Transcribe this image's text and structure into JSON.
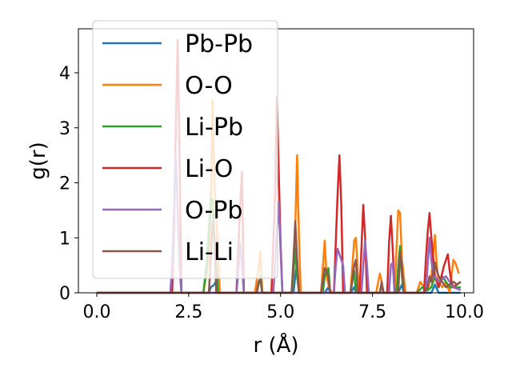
{
  "chart_data": {
    "type": "line",
    "title": "",
    "xlabel": "r (Å)",
    "ylabel": "g(r)",
    "xlim": [
      -0.5,
      10.25
    ],
    "ylim": [
      0,
      4.8
    ],
    "xticks": [
      0.0,
      2.5,
      5.0,
      7.5,
      10.0
    ],
    "xtick_labels": [
      "0.0",
      "2.5",
      "5.0",
      "7.5",
      "10.0"
    ],
    "yticks": [
      0,
      1,
      2,
      3,
      4
    ],
    "ytick_labels": [
      "0",
      "1",
      "2",
      "3",
      "4"
    ],
    "grid": false,
    "legend_position": "upper-left",
    "series": [
      {
        "name": "Pb-Pb",
        "color": "#1f77b4",
        "x": [
          0,
          3.05,
          3.1,
          3.2,
          3.3,
          3.35,
          5.35,
          5.4,
          5.45,
          5.5,
          6.2,
          6.3,
          6.35,
          6.9,
          7.0,
          7.05,
          8.2,
          8.3,
          8.35,
          9.1,
          9.2,
          9.3,
          9.9
        ],
        "values": [
          0,
          0,
          0.1,
          0.15,
          0.3,
          0,
          0,
          0.3,
          0.55,
          0,
          0,
          0.1,
          0,
          0,
          0.1,
          0,
          0,
          0.15,
          0,
          0,
          0.15,
          0,
          0
        ]
      },
      {
        "name": "O-O",
        "color": "#ff7f0e",
        "x": [
          0,
          2.9,
          3.05,
          3.1,
          3.15,
          3.2,
          3.25,
          3.35,
          4.3,
          4.4,
          4.45,
          4.5,
          5.3,
          5.35,
          5.4,
          5.45,
          5.5,
          5.55,
          6.1,
          6.2,
          6.25,
          6.3,
          6.35,
          6.4,
          6.9,
          7.0,
          7.05,
          7.1,
          7.15,
          7.6,
          7.7,
          7.75,
          7.8,
          8.1,
          8.2,
          8.25,
          8.3,
          8.4,
          8.7,
          8.8,
          8.9,
          9.0,
          9.1,
          9.2,
          9.25,
          9.3,
          9.4,
          9.5,
          9.6,
          9.7,
          9.75,
          9.85
        ],
        "values": [
          0,
          0,
          0.6,
          1.5,
          3.5,
          2.0,
          1.4,
          0,
          0,
          0.45,
          0.75,
          0,
          0,
          0.3,
          1.2,
          2.5,
          1.0,
          0,
          0,
          0.95,
          0.3,
          0.15,
          0.05,
          0,
          0,
          0.95,
          1.0,
          0.4,
          0,
          0,
          0.35,
          0.2,
          0,
          0,
          1.5,
          1.45,
          0.6,
          0,
          0,
          0.2,
          0.1,
          0.05,
          0.3,
          1.05,
          0.5,
          0.2,
          0.1,
          0.2,
          0,
          0.6,
          0.55,
          0.35
        ]
      },
      {
        "name": "Li-Pb",
        "color": "#2ca02c",
        "x": [
          0,
          2.9,
          3.0,
          3.1,
          3.15,
          3.2,
          3.3,
          4.35,
          4.45,
          4.5,
          5.3,
          5.35,
          5.4,
          5.45,
          5.5,
          6.15,
          6.2,
          6.3,
          6.35,
          6.9,
          7.0,
          7.05,
          7.7,
          7.75,
          7.8,
          8.15,
          8.2,
          8.25,
          8.3,
          8.35,
          8.7,
          8.85,
          9.0,
          9.1,
          9.2,
          9.3,
          9.4,
          9.6,
          9.9
        ],
        "values": [
          0,
          0,
          0.6,
          1.7,
          1.7,
          1.0,
          0,
          0,
          0.3,
          0,
          0,
          0.35,
          0.8,
          0.3,
          0,
          0,
          0.3,
          0.45,
          0,
          0,
          0.4,
          0,
          0,
          0.15,
          0,
          0,
          0.5,
          0.85,
          0.3,
          0,
          0,
          0.1,
          0.05,
          0.1,
          0.3,
          0.1,
          0.3,
          0.1,
          0.1
        ]
      },
      {
        "name": "Li-O",
        "color": "#d62728",
        "x": [
          0,
          2.05,
          2.1,
          2.15,
          2.2,
          2.25,
          2.3,
          3.8,
          3.85,
          3.9,
          3.95,
          4.0,
          4.75,
          4.8,
          4.85,
          4.9,
          4.95,
          5.0,
          5.05,
          6.45,
          6.5,
          6.55,
          6.6,
          6.65,
          6.7,
          7.15,
          7.2,
          7.25,
          7.3,
          7.35,
          7.9,
          7.95,
          8.0,
          8.05,
          8.1,
          8.9,
          8.95,
          9.0,
          9.05,
          9.1,
          9.2,
          9.25,
          9.3,
          9.45,
          9.55,
          9.6,
          9.65,
          9.7,
          9.9
        ],
        "values": [
          0,
          0,
          1.2,
          3.0,
          4.6,
          2.5,
          0,
          0,
          0.8,
          1.6,
          2.2,
          0,
          0,
          0.9,
          1.8,
          3.55,
          2.2,
          0.9,
          0,
          0,
          0.9,
          1.8,
          2.5,
          1.6,
          0,
          0,
          0.8,
          1.6,
          1.0,
          0,
          0,
          0.9,
          1.4,
          0.8,
          0,
          0,
          0.6,
          1.1,
          1.45,
          1.0,
          0.3,
          0.2,
          0.1,
          0.5,
          0.7,
          0.4,
          0.2,
          0.1,
          0.2
        ]
      },
      {
        "name": "O-Pb",
        "color": "#9467bd",
        "x": [
          0,
          2.0,
          2.05,
          2.1,
          2.15,
          2.2,
          2.25,
          2.3,
          3.8,
          3.85,
          3.9,
          3.95,
          4.0,
          4.8,
          4.85,
          4.9,
          4.95,
          5.0,
          5.05,
          6.45,
          6.5,
          6.55,
          6.6,
          6.7,
          6.75,
          7.2,
          7.25,
          7.3,
          7.35,
          7.4,
          7.95,
          8.0,
          8.05,
          8.1,
          8.95,
          9.0,
          9.05,
          9.1,
          9.15,
          9.2,
          9.3,
          9.5,
          9.6,
          9.7,
          9.9
        ],
        "values": [
          0,
          0,
          0.5,
          1.5,
          2.5,
          1.5,
          0.5,
          0,
          0,
          0.4,
          0.9,
          0.5,
          0,
          0,
          0.5,
          1.1,
          1.65,
          0.8,
          0,
          0,
          0.5,
          0.8,
          0.7,
          0.5,
          0,
          0,
          0.5,
          0.95,
          0.5,
          0,
          0,
          0.5,
          0.55,
          0,
          0,
          0.5,
          1.0,
          0.6,
          0.3,
          0.3,
          0.2,
          0.3,
          0.2,
          0.1,
          0.05
        ]
      },
      {
        "name": "Li-Li",
        "color": "#8c564b",
        "x": [
          0,
          3.05,
          3.1,
          3.15,
          3.2,
          3.25,
          4.35,
          4.4,
          4.45,
          4.5,
          5.3,
          5.35,
          5.4,
          5.45,
          5.5,
          6.1,
          6.2,
          6.3,
          6.35,
          6.9,
          7.0,
          7.05,
          7.1,
          7.7,
          7.75,
          7.8,
          8.2,
          8.25,
          8.3,
          8.35,
          8.9,
          9.0,
          9.05,
          9.1,
          9.2,
          9.25,
          9.3,
          9.4,
          9.5,
          9.6,
          9.7,
          9.8,
          9.9
        ],
        "values": [
          0,
          0,
          0.6,
          1.3,
          1.0,
          0,
          0,
          0.2,
          0.25,
          0,
          0,
          0.6,
          1.3,
          0.6,
          0,
          0,
          0.45,
          0.3,
          0,
          0,
          0.5,
          0.6,
          0,
          0,
          0.2,
          0,
          0,
          0.75,
          0.5,
          0,
          0,
          0.1,
          0.3,
          0.2,
          0.55,
          0.4,
          0.3,
          0.2,
          0.1,
          0.15,
          0.2,
          0.15,
          0.2
        ]
      }
    ]
  }
}
